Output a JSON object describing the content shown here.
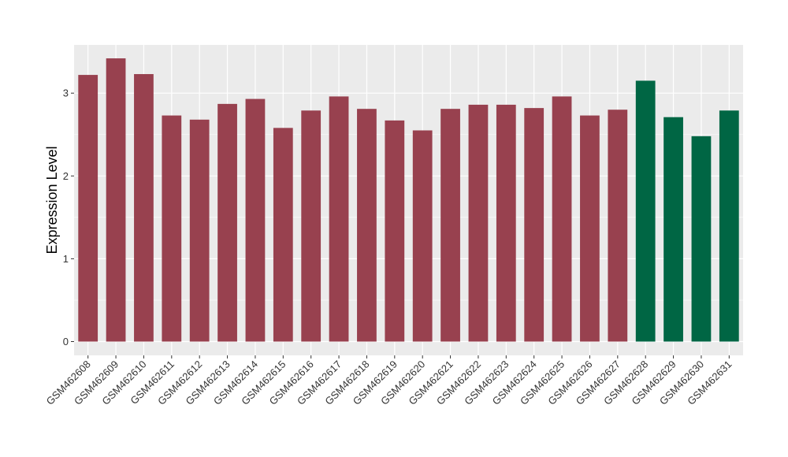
{
  "chart_data": {
    "type": "bar",
    "title": "",
    "xlabel": "",
    "ylabel": "Expression Level",
    "ylim": [
      -0.15,
      3.5
    ],
    "yticks": [
      0,
      1,
      2,
      3
    ],
    "ytick_labels": [
      "0",
      "1",
      "2",
      "3"
    ],
    "grid": true,
    "legend": "none",
    "colors": {
      "group_1": "#98414F",
      "group_2": "#006644",
      "panel_bg": "#EBEBEB",
      "grid": "#FFFFFF"
    },
    "categories": [
      "GSM462608",
      "GSM462609",
      "GSM462610",
      "GSM462611",
      "GSM462612",
      "GSM462613",
      "GSM462614",
      "GSM462615",
      "GSM462616",
      "GSM462617",
      "GSM462618",
      "GSM462619",
      "GSM462620",
      "GSM462621",
      "GSM462622",
      "GSM462623",
      "GSM462624",
      "GSM462625",
      "GSM462626",
      "GSM462627",
      "GSM462628",
      "GSM462629",
      "GSM462630",
      "GSM462631"
    ],
    "values": [
      3.22,
      3.42,
      3.23,
      2.73,
      2.68,
      2.87,
      2.93,
      2.58,
      2.79,
      2.96,
      2.81,
      2.67,
      2.55,
      2.81,
      2.86,
      2.86,
      2.82,
      2.96,
      2.73,
      2.8,
      3.15,
      2.71,
      2.48,
      2.79
    ],
    "groups": [
      "group_1",
      "group_1",
      "group_1",
      "group_1",
      "group_1",
      "group_1",
      "group_1",
      "group_1",
      "group_1",
      "group_1",
      "group_1",
      "group_1",
      "group_1",
      "group_1",
      "group_1",
      "group_1",
      "group_1",
      "group_1",
      "group_1",
      "group_1",
      "group_2",
      "group_2",
      "group_2",
      "group_2"
    ]
  }
}
